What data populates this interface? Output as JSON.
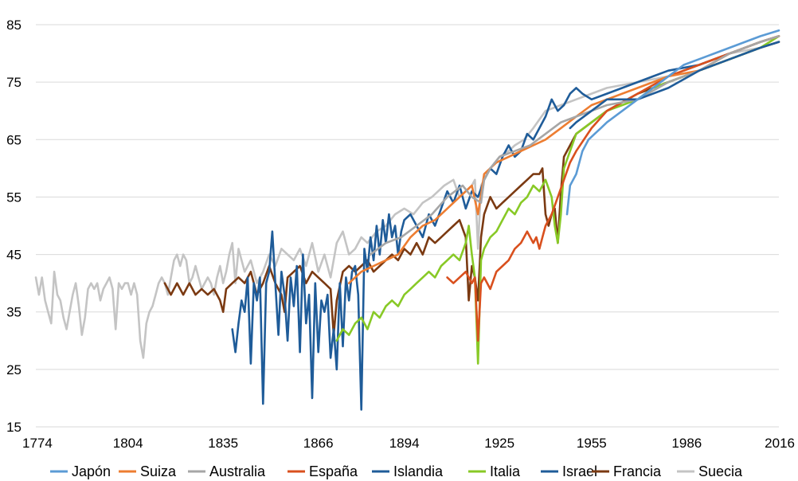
{
  "chart_data": {
    "type": "line",
    "title": "",
    "xlabel": "",
    "ylabel": "",
    "xlim": [
      1774,
      2016
    ],
    "ylim": [
      15,
      85
    ],
    "x_ticks": [
      "1774",
      "1804",
      "1835",
      "1866",
      "1894",
      "1925",
      "1955",
      "1986",
      "2016"
    ],
    "y_ticks": [
      "85",
      "75",
      "65",
      "55",
      "45",
      "35",
      "25",
      "15"
    ],
    "grid": "horizontal",
    "legend_position": "bottom",
    "series": [
      {
        "name": "Suecia",
        "color": "#c4c4c4",
        "x": [
          1774,
          1775,
          1776,
          1777,
          1778,
          1779,
          1780,
          1781,
          1782,
          1783,
          1784,
          1785,
          1786,
          1787,
          1788,
          1789,
          1790,
          1791,
          1792,
          1793,
          1794,
          1795,
          1796,
          1797,
          1798,
          1799,
          1800,
          1801,
          1802,
          1803,
          1804,
          1805,
          1806,
          1807,
          1808,
          1809,
          1810,
          1811,
          1812,
          1813,
          1814,
          1815,
          1816,
          1817,
          1818,
          1819,
          1820,
          1821,
          1822,
          1823,
          1824,
          1825,
          1826,
          1827,
          1828,
          1829,
          1830,
          1831,
          1832,
          1833,
          1834,
          1835,
          1836,
          1837,
          1838,
          1839,
          1840,
          1842,
          1844,
          1846,
          1848,
          1850,
          1852,
          1854,
          1856,
          1858,
          1860,
          1862,
          1864,
          1866,
          1868,
          1870,
          1872,
          1874,
          1876,
          1878,
          1880,
          1882,
          1885,
          1888,
          1891,
          1894,
          1897,
          1900,
          1903,
          1905,
          1907,
          1910,
          1912,
          1914,
          1916,
          1917,
          1918,
          1919,
          1920,
          1922,
          1925,
          1928,
          1930,
          1933,
          1936,
          1940,
          1945,
          1950,
          1955,
          1960,
          1970,
          1980,
          1990,
          2000,
          2010,
          2016
        ],
        "values": [
          41,
          38,
          41,
          37,
          35,
          33,
          42,
          38,
          37,
          34,
          32,
          35,
          38,
          40,
          36,
          31,
          34,
          39,
          40,
          39,
          40,
          37,
          39,
          40,
          41,
          39,
          32,
          40,
          39,
          40,
          40,
          38,
          40,
          38,
          30,
          27,
          33,
          35,
          36,
          38,
          40,
          41,
          40,
          38,
          41,
          44,
          45,
          43,
          45,
          44,
          40,
          41,
          43,
          41,
          39,
          40,
          41,
          40,
          38,
          41,
          43,
          40,
          42,
          45,
          47,
          40,
          46,
          42,
          44,
          40,
          42,
          45,
          43,
          46,
          45,
          44,
          46,
          43,
          47,
          42,
          45,
          41,
          47,
          49,
          45,
          46,
          48,
          47,
          49,
          50,
          52,
          53,
          52,
          54,
          55,
          56,
          57,
          58,
          55,
          56,
          57,
          58,
          46,
          57,
          58,
          60,
          62,
          63,
          64,
          65,
          67,
          70,
          71,
          72,
          73,
          74,
          75,
          76,
          78,
          80,
          81,
          82
        ]
      },
      {
        "name": "Francia",
        "color": "#7b3a12",
        "x": [
          1816,
          1818,
          1820,
          1822,
          1824,
          1826,
          1828,
          1830,
          1832,
          1834,
          1835,
          1836,
          1838,
          1840,
          1842,
          1844,
          1846,
          1848,
          1850,
          1852,
          1854,
          1855,
          1856,
          1858,
          1860,
          1862,
          1864,
          1866,
          1868,
          1870,
          1871,
          1872,
          1874,
          1876,
          1878,
          1880,
          1882,
          1884,
          1886,
          1888,
          1890,
          1892,
          1894,
          1896,
          1898,
          1900,
          1902,
          1904,
          1906,
          1908,
          1910,
          1912,
          1914,
          1915,
          1916,
          1917,
          1918,
          1919,
          1920,
          1922,
          1924,
          1926,
          1928,
          1930,
          1932,
          1934,
          1936,
          1938,
          1939,
          1940,
          1941,
          1942,
          1943,
          1944,
          1945,
          1946,
          1948,
          1950,
          1955,
          1960,
          1970,
          1980,
          1990,
          2000,
          2010,
          2016
        ],
        "values": [
          40,
          38,
          40,
          38,
          40,
          38,
          39,
          38,
          39,
          37,
          35,
          39,
          40,
          41,
          40,
          42,
          38,
          40,
          43,
          40,
          38,
          35,
          41,
          42,
          43,
          40,
          42,
          41,
          40,
          39,
          31,
          37,
          42,
          43,
          42,
          43,
          44,
          42,
          43,
          44,
          45,
          44,
          46,
          45,
          47,
          45,
          48,
          47,
          48,
          49,
          50,
          51,
          48,
          37,
          43,
          41,
          37,
          48,
          52,
          55,
          53,
          54,
          55,
          56,
          57,
          58,
          59,
          59,
          60,
          52,
          50,
          52,
          53,
          47,
          56,
          62,
          64,
          66,
          68,
          70,
          73,
          75,
          77,
          79,
          81,
          82
        ]
      },
      {
        "name": "Islandia",
        "color": "#1f5c99",
        "x": [
          1838,
          1839,
          1840,
          1841,
          1842,
          1843,
          1844,
          1845,
          1846,
          1847,
          1848,
          1849,
          1850,
          1851,
          1852,
          1853,
          1854,
          1855,
          1856,
          1857,
          1858,
          1859,
          1860,
          1861,
          1862,
          1863,
          1864,
          1865,
          1866,
          1867,
          1868,
          1869,
          1870,
          1871,
          1872,
          1873,
          1874,
          1875,
          1876,
          1877,
          1878,
          1879,
          1880,
          1881,
          1882,
          1883,
          1884,
          1885,
          1886,
          1887,
          1888,
          1889,
          1890,
          1891,
          1892,
          1893,
          1894,
          1896,
          1898,
          1900,
          1902,
          1904,
          1906,
          1908,
          1910,
          1912,
          1914,
          1916,
          1918,
          1920,
          1922,
          1924,
          1926,
          1928,
          1930,
          1932,
          1934,
          1936,
          1938,
          1940,
          1942,
          1944,
          1946,
          1948,
          1950,
          1952,
          1955,
          1960,
          1965,
          1970,
          1975,
          1980,
          1990,
          2000,
          2010,
          2016
        ],
        "values": [
          32,
          28,
          33,
          37,
          35,
          41,
          26,
          40,
          37,
          41,
          19,
          40,
          42,
          49,
          40,
          31,
          42,
          38,
          30,
          41,
          36,
          43,
          28,
          45,
          33,
          38,
          20,
          40,
          28,
          37,
          35,
          38,
          27,
          32,
          25,
          40,
          29,
          41,
          37,
          42,
          43,
          38,
          18,
          46,
          42,
          48,
          44,
          50,
          45,
          51,
          47,
          52,
          48,
          50,
          45,
          49,
          51,
          52,
          50,
          48,
          52,
          50,
          53,
          56,
          54,
          57,
          53,
          56,
          55,
          58,
          60,
          59,
          62,
          64,
          62,
          63,
          66,
          65,
          67,
          69,
          72,
          70,
          71,
          73,
          74,
          73,
          72,
          73,
          74,
          75,
          76,
          77,
          78,
          80,
          82,
          83
        ]
      },
      {
        "name": "Italia",
        "color": "#88c926",
        "x": [
          1872,
          1874,
          1876,
          1878,
          1880,
          1882,
          1884,
          1886,
          1888,
          1890,
          1892,
          1894,
          1896,
          1898,
          1900,
          1902,
          1904,
          1906,
          1908,
          1910,
          1912,
          1914,
          1915,
          1916,
          1917,
          1918,
          1919,
          1920,
          1922,
          1924,
          1926,
          1928,
          1930,
          1932,
          1934,
          1936,
          1938,
          1940,
          1942,
          1943,
          1944,
          1945,
          1946,
          1948,
          1950,
          1955,
          1960,
          1965,
          1970,
          1975,
          1980,
          1990,
          2000,
          2010,
          2016
        ],
        "values": [
          30,
          32,
          31,
          33,
          34,
          32,
          35,
          34,
          36,
          37,
          36,
          38,
          39,
          40,
          41,
          42,
          41,
          43,
          44,
          45,
          44,
          47,
          50,
          45,
          41,
          26,
          44,
          46,
          48,
          49,
          51,
          53,
          52,
          54,
          55,
          57,
          56,
          58,
          55,
          50,
          47,
          52,
          60,
          63,
          66,
          68,
          70,
          71,
          72,
          74,
          75,
          77,
          79,
          81,
          83
        ]
      },
      {
        "name": "España",
        "color": "#d9501e",
        "x": [
          1908,
          1910,
          1912,
          1914,
          1916,
          1917,
          1918,
          1919,
          1920,
          1922,
          1924,
          1926,
          1928,
          1930,
          1932,
          1934,
          1936,
          1937,
          1938,
          1939,
          1940,
          1942,
          1944,
          1946,
          1948,
          1950,
          1955,
          1960,
          1970,
          1980,
          1990,
          2000,
          2010,
          2016
        ],
        "values": [
          41,
          40,
          41,
          42,
          40,
          41,
          30,
          40,
          41,
          39,
          42,
          43,
          44,
          46,
          47,
          49,
          47,
          48,
          46,
          48,
          50,
          52,
          55,
          58,
          61,
          63,
          67,
          70,
          73,
          76,
          78,
          80,
          82,
          83
        ]
      },
      {
        "name": "Suiza",
        "color": "#ed7d31",
        "x": [
          1876,
          1880,
          1884,
          1888,
          1892,
          1896,
          1900,
          1904,
          1908,
          1912,
          1916,
          1918,
          1920,
          1924,
          1928,
          1932,
          1936,
          1940,
          1945,
          1950,
          1955,
          1960,
          1970,
          1980,
          1990,
          2000,
          2010,
          2016
        ],
        "values": [
          40,
          42,
          43,
          44,
          45,
          48,
          50,
          51,
          53,
          55,
          57,
          52,
          59,
          61,
          62,
          63,
          64,
          65,
          67,
          69,
          71,
          72,
          74,
          76,
          77,
          80,
          82,
          83
        ]
      },
      {
        "name": "Australia",
        "color": "#a6a6a6",
        "x": [
          1883,
          1888,
          1893,
          1898,
          1903,
          1908,
          1913,
          1916,
          1919,
          1920,
          1922,
          1925,
          1930,
          1935,
          1940,
          1945,
          1950,
          1955,
          1960,
          1970,
          1980,
          1990,
          2000,
          2010,
          2016
        ],
        "values": [
          45,
          47,
          48,
          50,
          52,
          55,
          57,
          55,
          54,
          58,
          60,
          62,
          63,
          64,
          66,
          68,
          69,
          70,
          71,
          72,
          75,
          77,
          80,
          82,
          83
        ]
      },
      {
        "name": "Israel",
        "color": "#1f5c99",
        "x": [
          1948,
          1950,
          1955,
          1960,
          1970,
          1980,
          1990,
          2000,
          2010,
          2016
        ],
        "values": [
          67,
          68,
          70,
          72,
          72,
          74,
          77,
          79,
          81,
          82
        ]
      },
      {
        "name": "Japón",
        "color": "#5b9bd5",
        "x": [
          1947,
          1948,
          1950,
          1952,
          1954,
          1956,
          1958,
          1960,
          1965,
          1970,
          1975,
          1980,
          1985,
          1990,
          1995,
          2000,
          2005,
          2010,
          2016
        ],
        "values": [
          52,
          57,
          59,
          63,
          65,
          66,
          67,
          68,
          70,
          72,
          74,
          76,
          78,
          79,
          80,
          81,
          82,
          83,
          84
        ]
      }
    ],
    "legend": [
      {
        "name": "Japón",
        "color": "#5b9bd5"
      },
      {
        "name": "Suiza",
        "color": "#ed7d31"
      },
      {
        "name": "Australia",
        "color": "#a6a6a6"
      },
      {
        "name": "España",
        "color": "#d9501e"
      },
      {
        "name": "Islandia",
        "color": "#1f5c99"
      },
      {
        "name": "Italia",
        "color": "#88c926"
      },
      {
        "name": "Israel",
        "color": "#1f5c99"
      },
      {
        "name": "Francia",
        "color": "#7b3a12"
      },
      {
        "name": "Suecia",
        "color": "#c4c4c4"
      }
    ]
  }
}
